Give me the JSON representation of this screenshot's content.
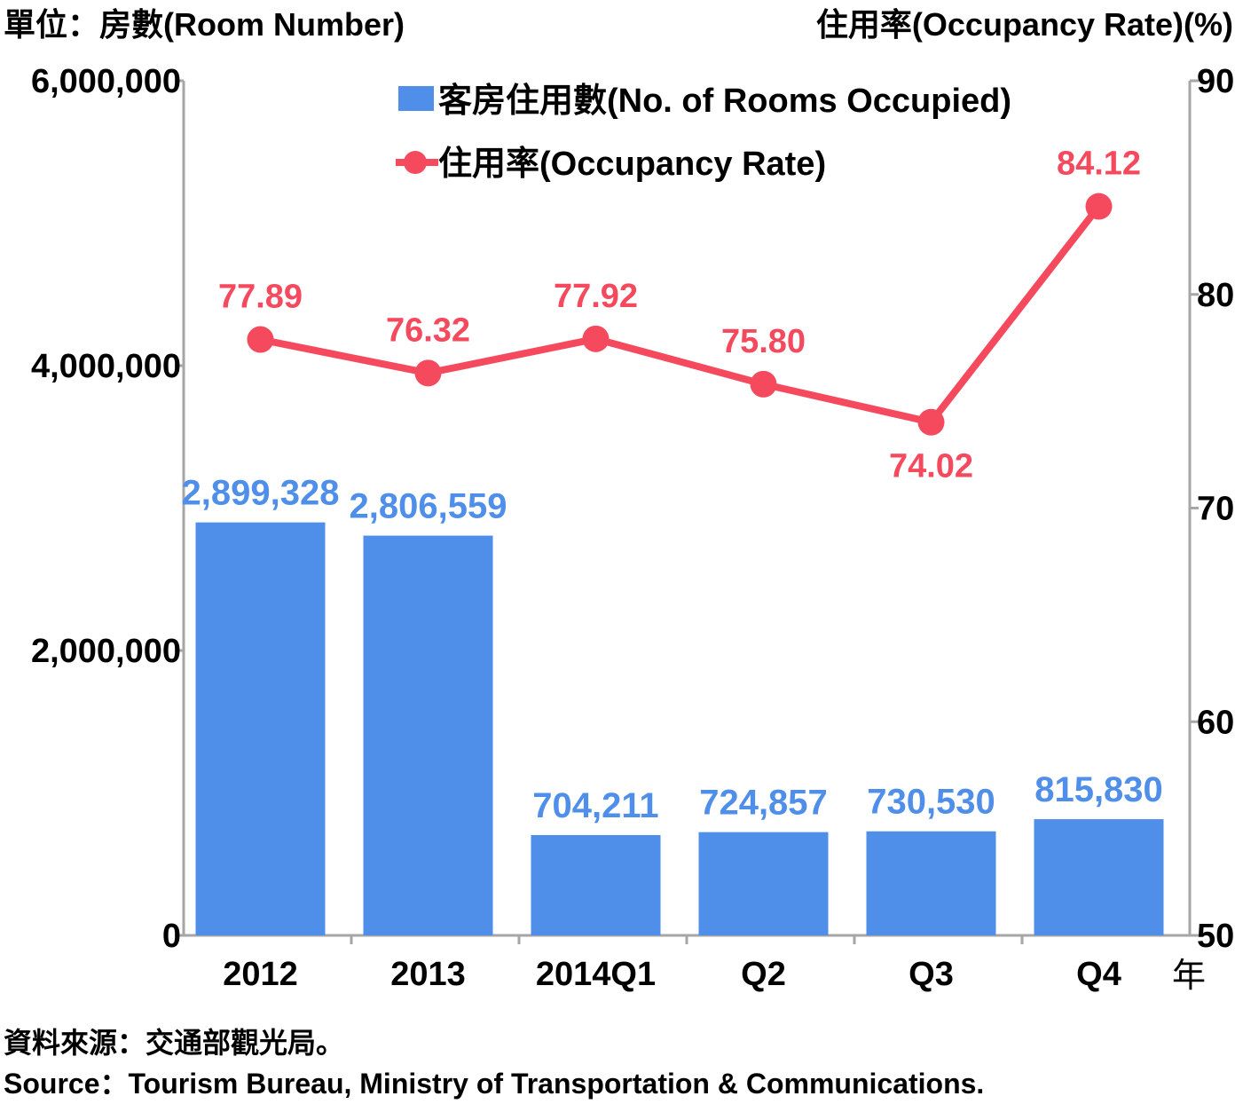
{
  "header": {
    "left_unit": "單位：房數(Room Number)",
    "right_unit": "住用率(Occupancy Rate)(%)"
  },
  "x_axis_suffix": "年",
  "footer": {
    "source_zh": "資料來源：交通部觀光局。",
    "source_en": "Source：Tourism Bureau, Ministry of Transportation & Communications."
  },
  "chart_data": {
    "type": "bar",
    "categories": [
      "2012",
      "2013",
      "2014Q1",
      "Q2",
      "Q3",
      "Q4"
    ],
    "series": [
      {
        "name": "客房住用數(No. of Rooms Occupied)",
        "type": "bar",
        "axis": "left",
        "color": "#4F8FEA",
        "values": [
          2899328,
          2806559,
          704211,
          724857,
          730530,
          815830
        ],
        "labels": [
          "2,899,328",
          "2,806,559",
          "704,211",
          "724,857",
          "730,530",
          "815,830"
        ]
      },
      {
        "name": "住用率(Occupancy Rate)",
        "type": "line",
        "axis": "right",
        "color": "#F5495E",
        "values": [
          77.89,
          76.32,
          77.92,
          75.8,
          74.02,
          84.12
        ],
        "labels": [
          "77.89",
          "76.32",
          "77.92",
          "75.80",
          "74.02",
          "84.12"
        ]
      }
    ],
    "y_left": {
      "range": [
        0,
        6000000
      ],
      "ticks": [
        0,
        2000000,
        4000000,
        6000000
      ],
      "tick_labels": [
        "0",
        "2,000,000",
        "4,000,000",
        "6,000,000"
      ]
    },
    "y_right": {
      "range": [
        50,
        90
      ],
      "ticks": [
        50,
        60,
        70,
        80,
        90
      ],
      "tick_labels": [
        "50",
        "60",
        "70",
        "80",
        "90"
      ]
    },
    "grid": false,
    "legend": "top-center"
  }
}
